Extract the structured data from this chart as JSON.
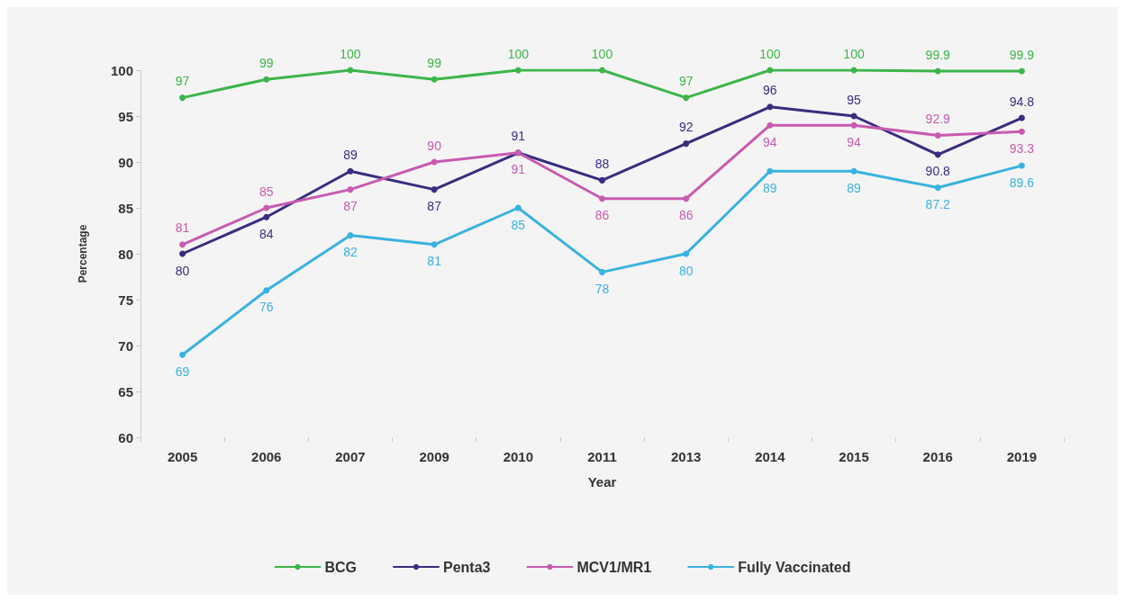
{
  "chart_data": {
    "type": "line",
    "xlabel": "Year",
    "ylabel": "Percentage",
    "categories": [
      "2005",
      "2006",
      "2007",
      "2009",
      "2010",
      "2011",
      "2013",
      "2014",
      "2015",
      "2016",
      "2019"
    ],
    "series": [
      {
        "name": "BCG",
        "color": "#3db54a",
        "values": [
          97,
          99,
          100,
          99,
          100,
          100,
          97,
          100,
          100,
          99.9,
          99.9
        ]
      },
      {
        "name": "Penta3",
        "color": "#3a2c7e",
        "values": [
          80,
          84,
          89,
          87,
          91,
          88,
          92,
          96,
          95,
          90.8,
          94.8
        ]
      },
      {
        "name": "MCV1/MR1",
        "color": "#c75bb0",
        "values": [
          81,
          85,
          87,
          90,
          91,
          86,
          86,
          94,
          94,
          92.9,
          93.3
        ]
      },
      {
        "name": "Fully Vaccinated",
        "color": "#3ab2de",
        "values": [
          69,
          76,
          82,
          81,
          85,
          78,
          80,
          89,
          89,
          87.2,
          89.6
        ]
      }
    ],
    "ylim": [
      60,
      100
    ],
    "yticks": [
      60,
      65,
      70,
      75,
      80,
      85,
      90,
      95,
      100
    ],
    "grid": false,
    "legend": "bottom",
    "marker": "circle",
    "line_style": "solid",
    "data_labels": true
  }
}
